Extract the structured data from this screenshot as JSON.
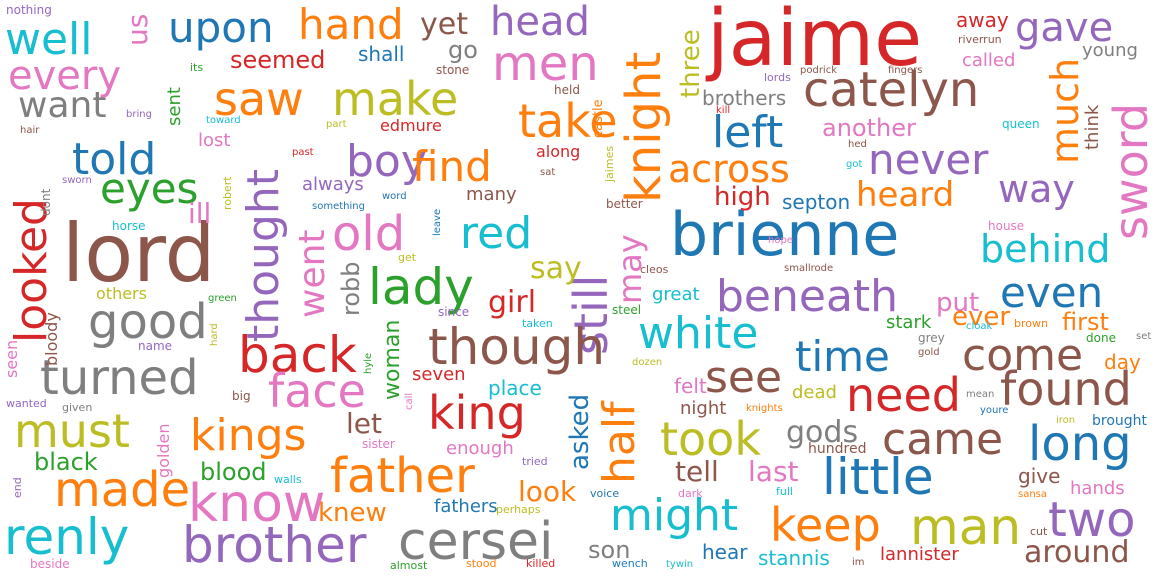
{
  "palette": {
    "blue": "#1f77b4",
    "orange": "#ff7f0e",
    "green": "#2ca02c",
    "red": "#d62728",
    "purple": "#9467bd",
    "brown": "#8c564b",
    "pink": "#e377c2",
    "gray": "#7f7f7f",
    "olive": "#bcbd22",
    "cyan": "#17becf"
  },
  "words": [
    {
      "text": "jaime",
      "color": "red"
    },
    {
      "text": "lord",
      "color": "brown"
    },
    {
      "text": "brienne",
      "color": "blue"
    },
    {
      "text": "catelyn",
      "color": "brown"
    },
    {
      "text": "knight",
      "color": "orange"
    },
    {
      "text": "still",
      "color": "purple"
    },
    {
      "text": "thought",
      "color": "purple"
    },
    {
      "text": "looked",
      "color": "red"
    },
    {
      "text": "sword",
      "color": "pink"
    },
    {
      "text": "gave",
      "color": "purple"
    },
    {
      "text": "hand",
      "color": "orange"
    },
    {
      "text": "upon",
      "color": "blue"
    },
    {
      "text": "well",
      "color": "cyan"
    },
    {
      "text": "every",
      "color": "pink"
    },
    {
      "text": "head",
      "color": "purple"
    },
    {
      "text": "men",
      "color": "pink"
    },
    {
      "text": "yet",
      "color": "brown"
    },
    {
      "text": "us",
      "color": "pink"
    },
    {
      "text": "want",
      "color": "gray"
    },
    {
      "text": "saw",
      "color": "orange"
    },
    {
      "text": "make",
      "color": "olive"
    },
    {
      "text": "take",
      "color": "orange"
    },
    {
      "text": "seemed",
      "color": "red"
    },
    {
      "text": "told",
      "color": "blue"
    },
    {
      "text": "eyes",
      "color": "green"
    },
    {
      "text": "boy",
      "color": "purple"
    },
    {
      "text": "find",
      "color": "orange"
    },
    {
      "text": "left",
      "color": "blue"
    },
    {
      "text": "never",
      "color": "purple"
    },
    {
      "text": "much",
      "color": "orange"
    },
    {
      "text": "across",
      "color": "orange"
    },
    {
      "text": "way",
      "color": "purple"
    },
    {
      "text": "heard",
      "color": "orange"
    },
    {
      "text": "red",
      "color": "cyan"
    },
    {
      "text": "old",
      "color": "pink"
    },
    {
      "text": "went",
      "color": "pink"
    },
    {
      "text": "lady",
      "color": "green"
    },
    {
      "text": "good",
      "color": "gray"
    },
    {
      "text": "behind",
      "color": "cyan"
    },
    {
      "text": "even",
      "color": "blue"
    },
    {
      "text": "beneath",
      "color": "purple"
    },
    {
      "text": "white",
      "color": "cyan"
    },
    {
      "text": "though",
      "color": "brown"
    },
    {
      "text": "back",
      "color": "red"
    },
    {
      "text": "turned",
      "color": "gray"
    },
    {
      "text": "face",
      "color": "pink"
    },
    {
      "text": "king",
      "color": "red"
    },
    {
      "text": "time",
      "color": "blue"
    },
    {
      "text": "come",
      "color": "brown"
    },
    {
      "text": "found",
      "color": "brown"
    },
    {
      "text": "need",
      "color": "red"
    },
    {
      "text": "see",
      "color": "brown"
    },
    {
      "text": "half",
      "color": "orange"
    },
    {
      "text": "may",
      "color": "pink"
    },
    {
      "text": "kings",
      "color": "orange"
    },
    {
      "text": "must",
      "color": "olive"
    },
    {
      "text": "took",
      "color": "olive"
    },
    {
      "text": "came",
      "color": "brown"
    },
    {
      "text": "long",
      "color": "blue"
    },
    {
      "text": "little",
      "color": "blue"
    },
    {
      "text": "father",
      "color": "orange"
    },
    {
      "text": "made",
      "color": "orange"
    },
    {
      "text": "know",
      "color": "pink"
    },
    {
      "text": "might",
      "color": "cyan"
    },
    {
      "text": "keep",
      "color": "orange"
    },
    {
      "text": "man",
      "color": "olive"
    },
    {
      "text": "two",
      "color": "purple"
    },
    {
      "text": "renly",
      "color": "cyan"
    },
    {
      "text": "brother",
      "color": "purple"
    },
    {
      "text": "cersei",
      "color": "gray"
    },
    {
      "text": "around",
      "color": "brown"
    },
    {
      "text": "girl",
      "color": "red"
    },
    {
      "text": "say",
      "color": "olive"
    },
    {
      "text": "robb",
      "color": "gray"
    },
    {
      "text": "three",
      "color": "olive"
    },
    {
      "text": "go",
      "color": "gray"
    },
    {
      "text": "shall",
      "color": "blue"
    },
    {
      "text": "ill",
      "color": "pink"
    },
    {
      "text": "high",
      "color": "red"
    },
    {
      "text": "another",
      "color": "pink"
    },
    {
      "text": "brothers",
      "color": "gray"
    },
    {
      "text": "put",
      "color": "pink"
    },
    {
      "text": "ever",
      "color": "orange"
    },
    {
      "text": "first",
      "color": "orange"
    },
    {
      "text": "asked",
      "color": "blue"
    },
    {
      "text": "look",
      "color": "orange"
    },
    {
      "text": "let",
      "color": "brown"
    },
    {
      "text": "knew",
      "color": "orange"
    },
    {
      "text": "gods",
      "color": "gray"
    },
    {
      "text": "tell",
      "color": "brown"
    },
    {
      "text": "last",
      "color": "pink"
    },
    {
      "text": "son",
      "color": "gray"
    },
    {
      "text": "woman",
      "color": "green"
    },
    {
      "text": "black",
      "color": "green"
    },
    {
      "text": "blood",
      "color": "green"
    },
    {
      "text": "fathers",
      "color": "blue"
    },
    {
      "text": "hear",
      "color": "blue"
    },
    {
      "text": "stannis",
      "color": "cyan"
    },
    {
      "text": "lannister",
      "color": "red"
    },
    {
      "text": "hands",
      "color": "pink"
    },
    {
      "text": "give",
      "color": "brown"
    },
    {
      "text": "day",
      "color": "orange"
    },
    {
      "text": "away",
      "color": "red"
    },
    {
      "text": "called",
      "color": "pink"
    },
    {
      "text": "young",
      "color": "gray"
    },
    {
      "text": "think",
      "color": "brown"
    },
    {
      "text": "septon",
      "color": "blue"
    },
    {
      "text": "great",
      "color": "cyan"
    },
    {
      "text": "seven",
      "color": "red"
    },
    {
      "text": "place",
      "color": "cyan"
    },
    {
      "text": "felt",
      "color": "pink"
    },
    {
      "text": "night",
      "color": "brown"
    },
    {
      "text": "dead",
      "color": "olive"
    },
    {
      "text": "enough",
      "color": "pink"
    },
    {
      "text": "stark",
      "color": "green"
    },
    {
      "text": "always",
      "color": "purple"
    },
    {
      "text": "many",
      "color": "brown"
    },
    {
      "text": "lost",
      "color": "pink"
    },
    {
      "text": "sent",
      "color": "green"
    },
    {
      "text": "along",
      "color": "red"
    },
    {
      "text": "edmure",
      "color": "red"
    },
    {
      "text": "others",
      "color": "olive"
    },
    {
      "text": "bloody",
      "color": "brown"
    },
    {
      "text": "seen",
      "color": "pink"
    },
    {
      "text": "golden",
      "color": "pink"
    },
    {
      "text": "brought",
      "color": "blue"
    },
    {
      "text": "hundred",
      "color": "brown"
    },
    {
      "text": "nothing",
      "color": "purple"
    },
    {
      "text": "its",
      "color": "green"
    },
    {
      "text": "stone",
      "color": "brown"
    },
    {
      "text": "held",
      "color": "brown"
    },
    {
      "text": "castle",
      "color": "orange"
    },
    {
      "text": "jaimes",
      "color": "olive"
    },
    {
      "text": "riverrun",
      "color": "brown"
    },
    {
      "text": "podrick",
      "color": "brown"
    },
    {
      "text": "fingers",
      "color": "brown"
    },
    {
      "text": "lords",
      "color": "purple"
    },
    {
      "text": "kill",
      "color": "red"
    },
    {
      "text": "bring",
      "color": "purple"
    },
    {
      "text": "toward",
      "color": "cyan"
    },
    {
      "text": "part",
      "color": "olive"
    },
    {
      "text": "hair",
      "color": "brown"
    },
    {
      "text": "past",
      "color": "red"
    },
    {
      "text": "sworn",
      "color": "purple"
    },
    {
      "text": "dont",
      "color": "gray"
    },
    {
      "text": "robert",
      "color": "olive"
    },
    {
      "text": "word",
      "color": "blue"
    },
    {
      "text": "something",
      "color": "blue"
    },
    {
      "text": "leave",
      "color": "blue"
    },
    {
      "text": "sat",
      "color": "brown"
    },
    {
      "text": "better",
      "color": "brown"
    },
    {
      "text": "horse",
      "color": "cyan"
    },
    {
      "text": "queen",
      "color": "cyan"
    },
    {
      "text": "hed",
      "color": "brown"
    },
    {
      "text": "got",
      "color": "cyan"
    },
    {
      "text": "house",
      "color": "pink"
    },
    {
      "text": "hope",
      "color": "pink"
    },
    {
      "text": "smallrode",
      "color": "brown"
    },
    {
      "text": "cleos",
      "color": "brown"
    },
    {
      "text": "get",
      "color": "olive"
    },
    {
      "text": "green",
      "color": "green"
    },
    {
      "text": "hard",
      "color": "olive"
    },
    {
      "text": "taken",
      "color": "cyan"
    },
    {
      "text": "since",
      "color": "purple"
    },
    {
      "text": "steel",
      "color": "green"
    },
    {
      "text": "cloak",
      "color": "cyan"
    },
    {
      "text": "brown",
      "color": "orange"
    },
    {
      "text": "set",
      "color": "gray"
    },
    {
      "text": "grey",
      "color": "gray"
    },
    {
      "text": "done",
      "color": "green"
    },
    {
      "text": "gold",
      "color": "brown"
    },
    {
      "text": "name",
      "color": "purple"
    },
    {
      "text": "hyle",
      "color": "green"
    },
    {
      "text": "dozen",
      "color": "olive"
    },
    {
      "text": "mean",
      "color": "gray"
    },
    {
      "text": "youre",
      "color": "blue"
    },
    {
      "text": "iron",
      "color": "olive"
    },
    {
      "text": "knights",
      "color": "orange"
    },
    {
      "text": "big",
      "color": "brown"
    },
    {
      "text": "call",
      "color": "pink"
    },
    {
      "text": "wanted",
      "color": "purple"
    },
    {
      "text": "given",
      "color": "gray"
    },
    {
      "text": "sister",
      "color": "pink"
    },
    {
      "text": "tried",
      "color": "purple"
    },
    {
      "text": "end",
      "color": "purple"
    },
    {
      "text": "walls",
      "color": "cyan"
    },
    {
      "text": "voice",
      "color": "blue"
    },
    {
      "text": "dark",
      "color": "pink"
    },
    {
      "text": "full",
      "color": "cyan"
    },
    {
      "text": "sansa",
      "color": "orange"
    },
    {
      "text": "cut",
      "color": "brown"
    },
    {
      "text": "perhaps",
      "color": "olive"
    },
    {
      "text": "beside",
      "color": "pink"
    },
    {
      "text": "almost",
      "color": "green"
    },
    {
      "text": "stood",
      "color": "orange"
    },
    {
      "text": "killed",
      "color": "red"
    },
    {
      "text": "wench",
      "color": "blue"
    },
    {
      "text": "tywin",
      "color": "cyan"
    },
    {
      "text": "im",
      "color": "brown"
    }
  ]
}
